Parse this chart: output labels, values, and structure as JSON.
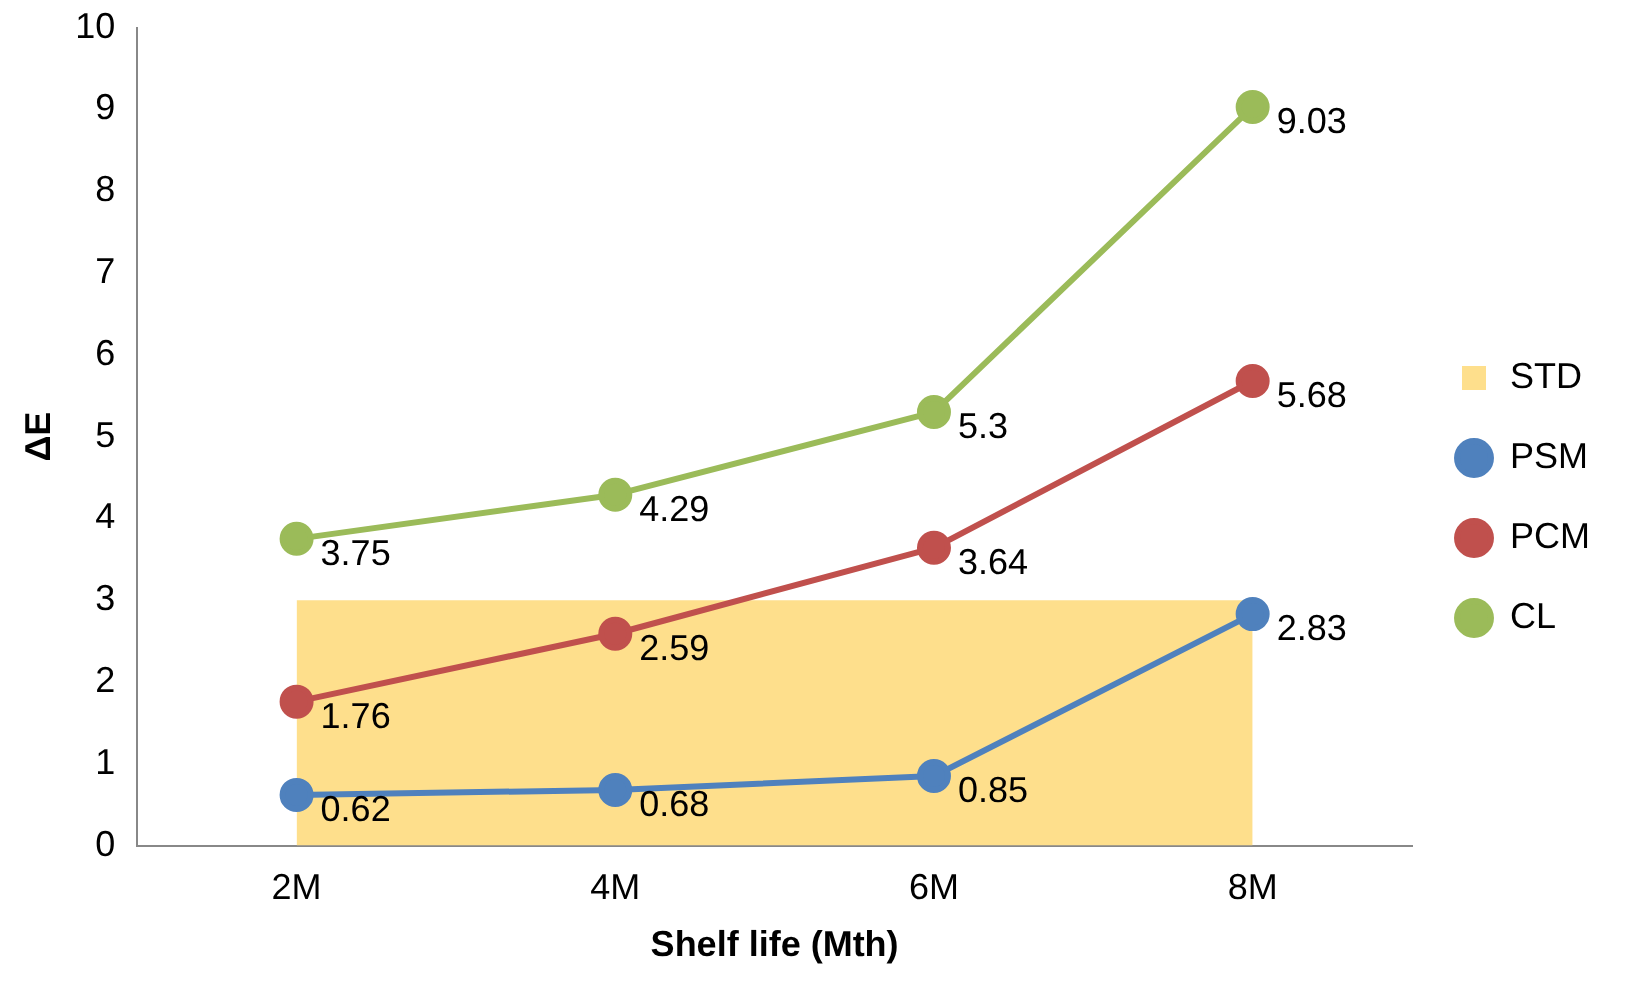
{
  "chart_data": {
    "type": "line",
    "xlabel": "Shelf life (Mth)",
    "ylabel": "ΔE",
    "categories": [
      "2M",
      "4M",
      "6M",
      "8M"
    ],
    "ylim": [
      0,
      10
    ],
    "yticks": [
      0,
      1,
      2,
      3,
      4,
      5,
      6,
      7,
      8,
      9,
      10
    ],
    "grid": false,
    "legend": "right",
    "series": [
      {
        "name": "STD",
        "type": "area",
        "color": "#fedf8c",
        "values": [
          3,
          3,
          3,
          3
        ]
      },
      {
        "name": "PSM",
        "color": "#4f81bd",
        "marker": "circle",
        "values": [
          0.62,
          0.68,
          0.85,
          2.83
        ],
        "value_labels": [
          "0.62",
          "0.68",
          "0.85",
          "2.83"
        ]
      },
      {
        "name": "PCM",
        "color": "#c0504d",
        "marker": "circle",
        "values": [
          1.76,
          2.59,
          3.64,
          5.68
        ],
        "value_labels": [
          "1.76",
          "2.59",
          "3.64",
          "5.68"
        ]
      },
      {
        "name": "CL",
        "color": "#9bbb59",
        "marker": "circle",
        "values": [
          3.75,
          4.29,
          5.3,
          9.03
        ],
        "value_labels": [
          "3.75",
          "4.29",
          "5.3",
          "9.03"
        ]
      }
    ]
  }
}
